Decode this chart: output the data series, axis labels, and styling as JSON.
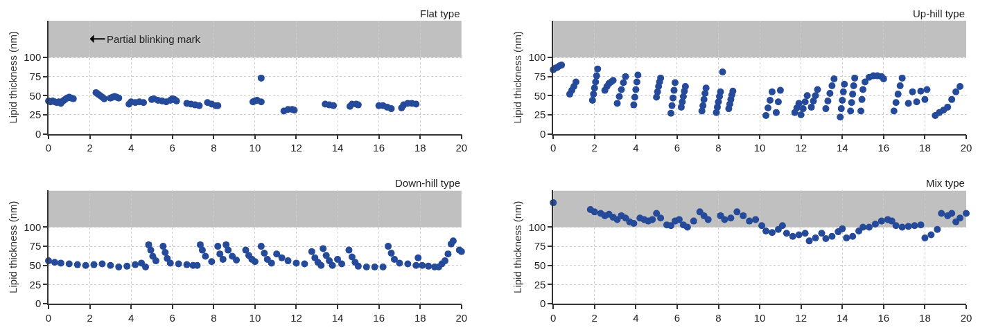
{
  "chart_data": [
    {
      "type": "scatter",
      "title": "Flat type",
      "ylabel": "Lipid thickness (nm)",
      "xlim": [
        0,
        20
      ],
      "xticks": [
        0,
        2,
        4,
        6,
        8,
        10,
        12,
        14,
        16,
        18,
        20
      ],
      "ylim": [
        0,
        148
      ],
      "yticks": [
        0,
        25,
        50,
        75,
        100
      ],
      "grid": true,
      "marker": "circle",
      "bands": [
        {
          "axis": "y",
          "from": 100,
          "to": 148,
          "color": "#c0c0c0"
        }
      ],
      "annotations": [
        "Partial blinking mark"
      ],
      "series": [
        {
          "color": "#254a99",
          "x": [
            0,
            0.1,
            0.2,
            0.3,
            0.4,
            0.5,
            0.6,
            0.7,
            0.8,
            0.9,
            1.0,
            1.1,
            1.2,
            2.3,
            2.4,
            2.5,
            2.6,
            2.7,
            3.0,
            3.1,
            3.2,
            3.3,
            3.4,
            3.9,
            4.0,
            4.2,
            4.4,
            4.6,
            5.0,
            5.1,
            5.3,
            5.5,
            5.7,
            5.9,
            6.0,
            6.1,
            6.2,
            6.7,
            6.9,
            7.1,
            7.3,
            7.7,
            7.9,
            8.1,
            8.2,
            9.9,
            10.0,
            10.1,
            10.3,
            10.3,
            11.4,
            11.6,
            11.8,
            11.9,
            13.4,
            13.6,
            13.8,
            14.6,
            14.7,
            14.9,
            15.0,
            16.0,
            16.2,
            16.4,
            16.6,
            17.1,
            17.2,
            17.4,
            17.6,
            17.8
          ],
          "values": [
            43,
            42,
            43,
            42,
            41,
            42,
            40,
            43,
            45,
            47,
            48,
            47,
            46,
            54,
            52,
            50,
            48,
            46,
            47,
            48,
            49,
            48,
            47,
            39,
            42,
            41,
            42,
            41,
            45,
            46,
            44,
            43,
            42,
            44,
            46,
            45,
            43,
            40,
            39,
            38,
            37,
            41,
            39,
            37,
            37,
            42,
            43,
            44,
            42,
            73,
            30,
            32,
            32,
            31,
            39,
            38,
            37,
            36,
            39,
            39,
            38,
            37,
            37,
            35,
            33,
            34,
            38,
            40,
            40,
            39
          ]
        }
      ]
    },
    {
      "type": "scatter",
      "title": "Up-hill type",
      "ylabel": "Lipid thickness (nm)",
      "xlim": [
        0,
        20
      ],
      "xticks": [
        0,
        2,
        4,
        6,
        8,
        10,
        12,
        14,
        16,
        18,
        20
      ],
      "ylim": [
        0,
        148
      ],
      "yticks": [
        0,
        25,
        50,
        75,
        100
      ],
      "grid": true,
      "marker": "circle",
      "bands": [
        {
          "axis": "y",
          "from": 100,
          "to": 148,
          "color": "#c0c0c0"
        }
      ],
      "series": [
        {
          "color": "#254a99",
          "x": [
            0,
            0.1,
            0.2,
            0.3,
            0.4,
            0.8,
            0.9,
            1.0,
            1.1,
            1.9,
            1.95,
            2.0,
            2.05,
            2.1,
            2.15,
            2.5,
            2.6,
            2.7,
            2.8,
            2.9,
            3.1,
            3.2,
            3.3,
            3.4,
            3.5,
            3.9,
            3.95,
            4.0,
            4.05,
            4.1,
            5.0,
            5.05,
            5.1,
            5.15,
            5.2,
            5.7,
            5.75,
            5.8,
            5.85,
            5.9,
            6.2,
            6.25,
            6.3,
            6.35,
            6.4,
            7.2,
            7.25,
            7.3,
            7.35,
            7.4,
            7.9,
            7.95,
            8.0,
            8.05,
            8.1,
            8.2,
            8.5,
            8.55,
            8.6,
            8.65,
            8.7,
            10.3,
            10.4,
            10.5,
            10.6,
            10.8,
            10.9,
            11.0,
            11.7,
            11.8,
            11.9,
            12.0,
            12.1,
            12.2,
            12.3,
            12.5,
            12.6,
            12.7,
            12.8,
            13.2,
            13.3,
            13.4,
            13.5,
            13.6,
            13.9,
            13.95,
            14.0,
            14.05,
            14.1,
            14.4,
            14.45,
            14.5,
            14.55,
            14.6,
            14.9,
            14.95,
            15.0,
            15.1,
            15.3,
            15.5,
            15.7,
            15.9,
            16.0,
            16.5,
            16.6,
            16.7,
            16.8,
            16.9,
            17.2,
            17.4,
            17.6,
            17.8,
            18.0,
            18.1,
            18.5,
            18.7,
            18.9,
            19.1,
            19.3,
            19.5,
            19.7
          ],
          "values": [
            84,
            86,
            87,
            89,
            90,
            52,
            57,
            62,
            68,
            44,
            52,
            60,
            68,
            76,
            85,
            57,
            62,
            66,
            68,
            70,
            40,
            49,
            58,
            67,
            75,
            38,
            48,
            58,
            68,
            77,
            48,
            55,
            62,
            68,
            73,
            27,
            37,
            47,
            57,
            67,
            35,
            42,
            49,
            56,
            62,
            30,
            37,
            45,
            53,
            60,
            28,
            35,
            42,
            49,
            55,
            81,
            33,
            39,
            45,
            51,
            56,
            24,
            34,
            44,
            55,
            28,
            42,
            57,
            28,
            34,
            40,
            25,
            33,
            42,
            50,
            35,
            43,
            50,
            58,
            33,
            43,
            53,
            63,
            72,
            22,
            33,
            44,
            55,
            65,
            30,
            41,
            52,
            63,
            73,
            30,
            45,
            58,
            68,
            74,
            76,
            76,
            75,
            72,
            30,
            41,
            52,
            63,
            73,
            40,
            55,
            42,
            56,
            45,
            58,
            24,
            28,
            31,
            35,
            45,
            55,
            62
          ]
        }
      ]
    },
    {
      "type": "scatter",
      "title": "Down-hill type",
      "ylabel": "Lipid thickness (nm)",
      "xlim": [
        0,
        20
      ],
      "xticks": [
        0,
        2,
        4,
        6,
        8,
        10,
        12,
        14,
        16,
        18,
        20
      ],
      "ylim": [
        0,
        148
      ],
      "yticks": [
        0,
        25,
        50,
        75,
        100
      ],
      "grid": true,
      "marker": "circle",
      "bands": [
        {
          "axis": "y",
          "from": 100,
          "to": 148,
          "color": "#c0c0c0"
        }
      ],
      "series": [
        {
          "color": "#254a99",
          "x": [
            0,
            0.3,
            0.6,
            1.0,
            1.4,
            1.8,
            2.2,
            2.6,
            3.0,
            3.4,
            3.8,
            4.2,
            4.5,
            4.7,
            4.85,
            4.95,
            5.05,
            5.2,
            5.55,
            5.65,
            5.75,
            5.9,
            6.3,
            6.7,
            7.0,
            7.2,
            7.35,
            7.45,
            7.6,
            7.9,
            8.2,
            8.3,
            8.45,
            8.6,
            8.7,
            8.9,
            9.1,
            9.55,
            9.7,
            9.85,
            10.0,
            10.3,
            10.45,
            10.6,
            10.8,
            11.05,
            11.3,
            11.6,
            12.0,
            12.4,
            12.75,
            12.9,
            13.05,
            13.2,
            13.3,
            13.45,
            13.6,
            13.75,
            14.0,
            14.2,
            14.55,
            14.7,
            14.85,
            15.0,
            15.4,
            15.8,
            16.2,
            16.45,
            16.6,
            16.75,
            17.0,
            17.4,
            17.8,
            17.9,
            18.1,
            18.4,
            18.7,
            18.9,
            19.05,
            19.2,
            19.35,
            19.5,
            19.6,
            19.9,
            20.0
          ],
          "values": [
            56,
            54,
            53,
            52,
            51,
            50,
            51,
            52,
            50,
            48,
            49,
            51,
            53,
            48,
            77,
            70,
            62,
            56,
            75,
            67,
            59,
            53,
            52,
            51,
            50,
            50,
            77,
            70,
            62,
            55,
            75,
            65,
            58,
            77,
            70,
            62,
            57,
            70,
            63,
            58,
            55,
            75,
            66,
            58,
            53,
            65,
            60,
            56,
            53,
            52,
            68,
            60,
            54,
            50,
            72,
            63,
            56,
            50,
            58,
            52,
            70,
            61,
            54,
            49,
            48,
            48,
            48,
            75,
            66,
            58,
            53,
            52,
            50,
            60,
            50,
            49,
            48,
            48,
            52,
            56,
            65,
            78,
            82,
            70,
            68
          ]
        }
      ]
    },
    {
      "type": "scatter",
      "title": "Mix type",
      "ylabel": "Lipid thickness (nm)",
      "xlim": [
        0,
        20
      ],
      "xticks": [
        0,
        2,
        4,
        6,
        8,
        10,
        12,
        14,
        16,
        18,
        20
      ],
      "ylim": [
        0,
        148
      ],
      "yticks": [
        0,
        25,
        50,
        75,
        100
      ],
      "grid": true,
      "marker": "circle",
      "bands": [
        {
          "axis": "y",
          "from": 100,
          "to": 148,
          "color": "#c0c0c0"
        }
      ],
      "series": [
        {
          "color": "#254a99",
          "x": [
            0,
            1.8,
            2.0,
            2.3,
            2.5,
            2.7,
            2.9,
            3.1,
            3.3,
            3.5,
            3.7,
            3.9,
            4.2,
            4.4,
            4.6,
            4.8,
            5.0,
            5.2,
            5.5,
            5.7,
            5.9,
            6.1,
            6.3,
            6.5,
            6.8,
            7.1,
            7.3,
            7.5,
            8.1,
            8.3,
            8.6,
            8.9,
            9.2,
            9.5,
            9.8,
            10.1,
            10.3,
            10.6,
            10.9,
            11.1,
            11.3,
            11.6,
            11.9,
            12.2,
            12.4,
            12.7,
            13.0,
            13.2,
            13.5,
            13.8,
            14.0,
            14.2,
            14.5,
            14.8,
            15.0,
            15.3,
            15.6,
            15.9,
            16.2,
            16.4,
            16.6,
            16.9,
            17.2,
            17.5,
            17.8,
            18.0,
            18.3,
            18.6,
            18.8,
            19.1,
            19.3,
            19.5,
            19.7,
            20.0
          ],
          "values": [
            132,
            123,
            120,
            118,
            115,
            117,
            113,
            110,
            115,
            112,
            107,
            105,
            112,
            110,
            108,
            110,
            118,
            112,
            103,
            102,
            108,
            110,
            103,
            100,
            108,
            120,
            115,
            110,
            115,
            110,
            112,
            120,
            115,
            108,
            110,
            102,
            95,
            93,
            97,
            102,
            92,
            88,
            90,
            92,
            82,
            86,
            92,
            85,
            88,
            94,
            98,
            86,
            88,
            95,
            100,
            100,
            104,
            108,
            110,
            108,
            102,
            100,
            101,
            102,
            103,
            86,
            90,
            97,
            118,
            115,
            118,
            107,
            112,
            118
          ]
        }
      ]
    }
  ]
}
